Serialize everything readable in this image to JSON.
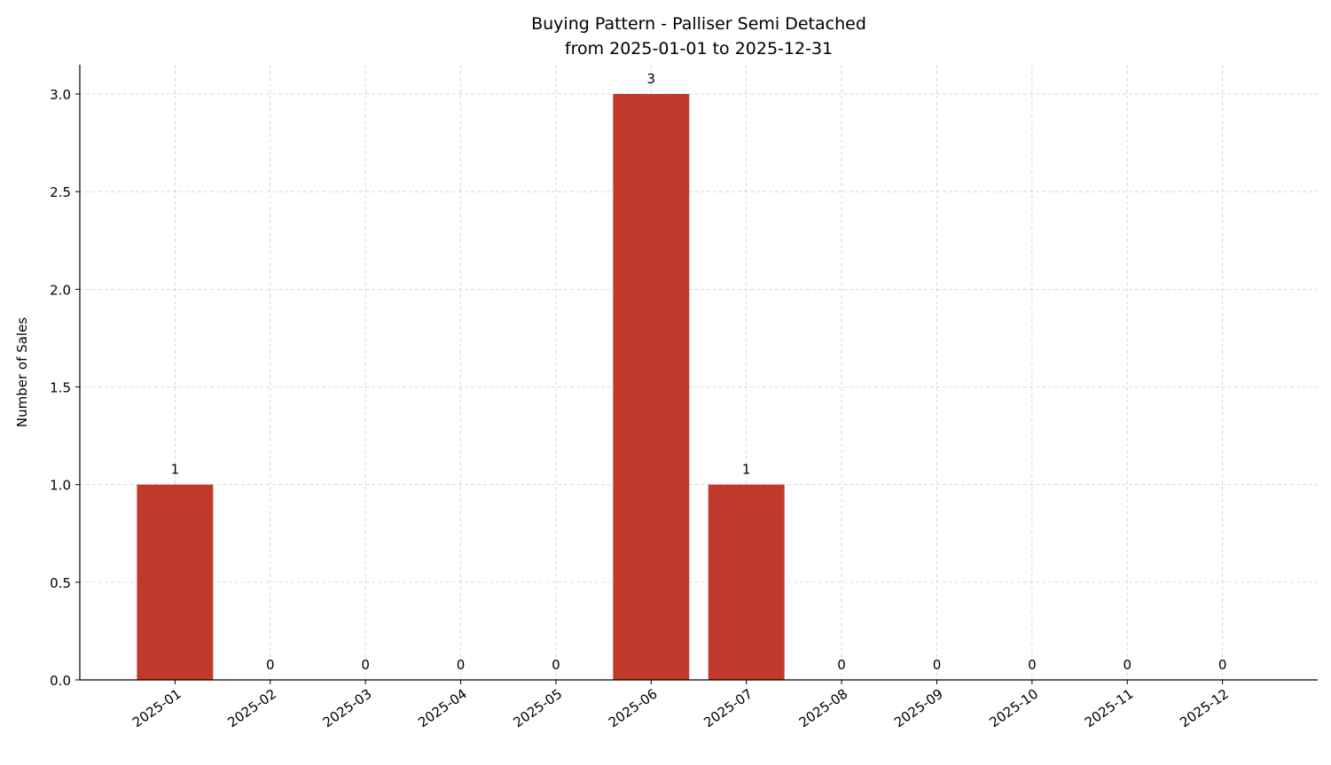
{
  "chart_data": {
    "type": "bar",
    "title": "Buying Pattern - Palliser Semi Detached",
    "subtitle": "from 2025-01-01 to 2025-12-31",
    "y_label": "Number of Sales",
    "categories": [
      "2025-01",
      "2025-02",
      "2025-03",
      "2025-04",
      "2025-05",
      "2025-06",
      "2025-07",
      "2025-08",
      "2025-09",
      "2025-10",
      "2025-11",
      "2025-12"
    ],
    "values": [
      1,
      0,
      0,
      0,
      0,
      3,
      1,
      0,
      0,
      0,
      0,
      0
    ],
    "color": "#c0392b",
    "ylim": [
      0,
      3.15
    ],
    "yticks": [
      {
        "value": 0,
        "label": "0.0"
      },
      0.5,
      {
        "value": 1,
        "label": "1.0"
      },
      1.5,
      {
        "value": 2,
        "label": "2.0"
      },
      2.5,
      {
        "value": 3,
        "label": "3.0"
      }
    ],
    "grid": true
  }
}
